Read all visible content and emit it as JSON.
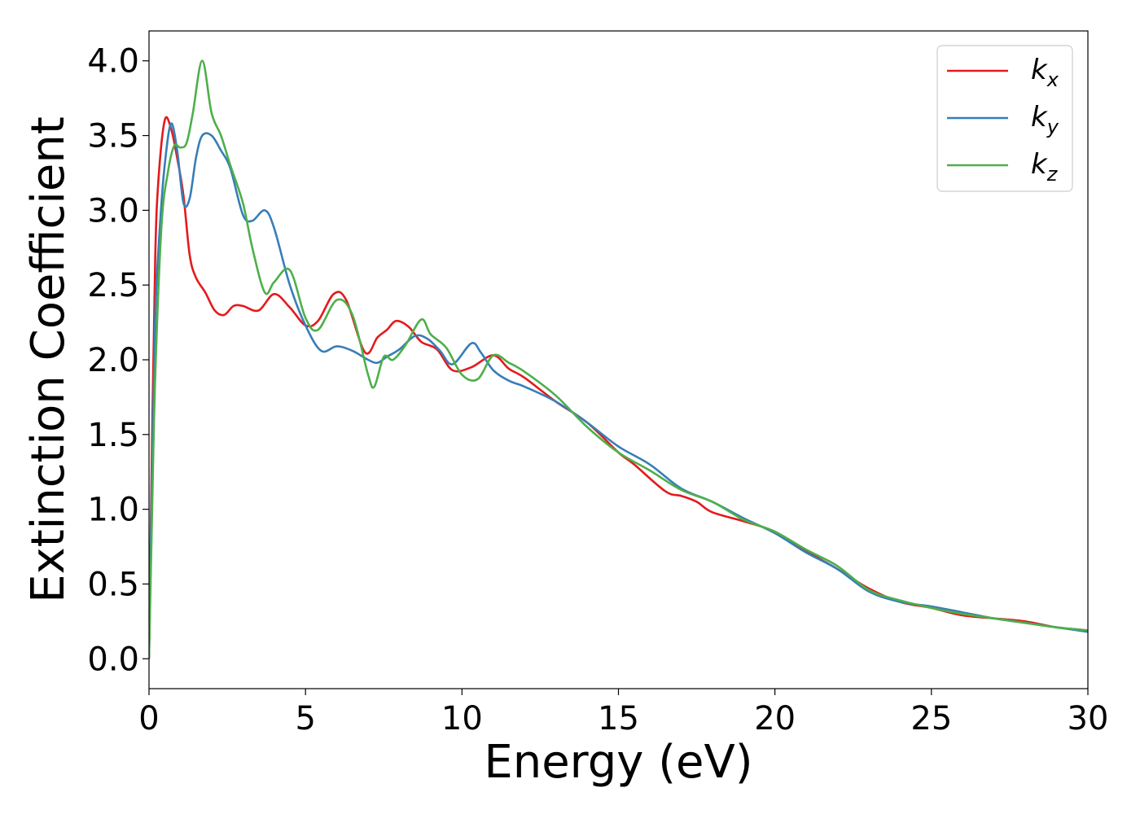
{
  "chart_data": {
    "type": "line",
    "title": "",
    "xlabel": "Energy (eV)",
    "ylabel": "Extinction Coefficient",
    "xlim": [
      0,
      30
    ],
    "ylim": [
      -0.2,
      4.2
    ],
    "xticks": [
      0,
      5,
      10,
      15,
      20,
      25,
      30
    ],
    "xtick_labels": [
      "0",
      "5",
      "10",
      "15",
      "20",
      "25",
      "30"
    ],
    "yticks": [
      0.0,
      0.5,
      1.0,
      1.5,
      2.0,
      2.5,
      3.0,
      3.5,
      4.0
    ],
    "ytick_labels": [
      "0.0",
      "0.5",
      "1.0",
      "1.5",
      "2.0",
      "2.5",
      "3.0",
      "3.5",
      "4.0"
    ],
    "grid": false,
    "legend_position": "top-right",
    "series": [
      {
        "name": "k",
        "name_sub": "x",
        "color": "#e41a1c",
        "x": [
          0,
          0.1,
          0.2,
          0.3,
          0.5,
          0.7,
          0.9,
          1.1,
          1.3,
          1.5,
          1.8,
          2.1,
          2.4,
          2.7,
          3.0,
          3.5,
          4.0,
          4.5,
          5.0,
          5.4,
          5.9,
          6.3,
          6.9,
          7.3,
          7.6,
          7.9,
          8.3,
          8.7,
          9.2,
          9.7,
          10.3,
          11.0,
          11.5,
          12.0,
          13.0,
          14.0,
          15.0,
          15.5,
          16.5,
          17.0,
          17.5,
          18.0,
          19.0,
          20.0,
          21.0,
          22.0,
          23.0,
          24.0,
          25.0,
          26.0,
          27.0,
          28.0,
          29.0,
          30.0
        ],
        "y": [
          0.0,
          1.5,
          2.7,
          3.2,
          3.6,
          3.55,
          3.35,
          3.1,
          2.7,
          2.55,
          2.45,
          2.33,
          2.3,
          2.36,
          2.36,
          2.33,
          2.44,
          2.35,
          2.23,
          2.26,
          2.44,
          2.4,
          2.05,
          2.15,
          2.2,
          2.26,
          2.22,
          2.12,
          2.07,
          1.93,
          1.95,
          2.03,
          1.94,
          1.88,
          1.72,
          1.58,
          1.38,
          1.3,
          1.12,
          1.09,
          1.05,
          0.98,
          0.92,
          0.85,
          0.72,
          0.6,
          0.47,
          0.38,
          0.34,
          0.29,
          0.27,
          0.25,
          0.21,
          0.19
        ]
      },
      {
        "name": "k",
        "name_sub": "y",
        "color": "#377eb8",
        "x": [
          0,
          0.1,
          0.2,
          0.35,
          0.5,
          0.7,
          0.9,
          1.1,
          1.3,
          1.5,
          1.7,
          2.0,
          2.3,
          2.6,
          3.0,
          3.3,
          3.7,
          4.0,
          4.5,
          5.0,
          5.5,
          6.0,
          6.5,
          7.0,
          7.3,
          7.6,
          8.0,
          8.5,
          8.9,
          9.3,
          9.7,
          10.3,
          10.6,
          11.0,
          11.5,
          12.0,
          13.0,
          14.0,
          15.0,
          16.0,
          17.0,
          18.0,
          19.0,
          20.0,
          21.0,
          22.0,
          23.0,
          24.0,
          25.0,
          26.0,
          27.0,
          28.0,
          29.0,
          30.0
        ],
        "y": [
          0.0,
          1.3,
          2.3,
          2.9,
          3.3,
          3.58,
          3.4,
          3.05,
          3.08,
          3.35,
          3.5,
          3.5,
          3.4,
          3.28,
          2.97,
          2.93,
          3.0,
          2.88,
          2.5,
          2.23,
          2.06,
          2.09,
          2.06,
          2.0,
          1.98,
          2.02,
          2.07,
          2.16,
          2.14,
          2.06,
          1.97,
          2.11,
          2.05,
          1.93,
          1.86,
          1.82,
          1.72,
          1.58,
          1.42,
          1.3,
          1.14,
          1.05,
          0.94,
          0.84,
          0.71,
          0.6,
          0.45,
          0.38,
          0.35,
          0.31,
          0.27,
          0.24,
          0.21,
          0.18
        ]
      },
      {
        "name": "k",
        "name_sub": "z",
        "color": "#4daf4a",
        "x": [
          0,
          0.1,
          0.2,
          0.4,
          0.6,
          0.8,
          1.0,
          1.2,
          1.4,
          1.7,
          2.0,
          2.3,
          2.6,
          3.0,
          3.3,
          3.7,
          4.0,
          4.5,
          5.0,
          5.4,
          6.0,
          6.5,
          7.0,
          7.2,
          7.5,
          7.8,
          8.2,
          8.7,
          9.0,
          9.5,
          10.0,
          10.5,
          11.0,
          11.5,
          12.0,
          13.0,
          14.0,
          15.0,
          16.0,
          17.0,
          18.0,
          19.0,
          20.0,
          21.0,
          22.0,
          23.0,
          24.0,
          25.0,
          26.0,
          27.0,
          28.0,
          29.0,
          30.0
        ],
        "y": [
          0.0,
          1.0,
          1.9,
          2.9,
          3.25,
          3.43,
          3.42,
          3.45,
          3.65,
          4.0,
          3.65,
          3.5,
          3.3,
          3.05,
          2.75,
          2.45,
          2.52,
          2.6,
          2.28,
          2.2,
          2.4,
          2.3,
          1.9,
          1.82,
          2.02,
          2.0,
          2.1,
          2.27,
          2.17,
          2.08,
          1.9,
          1.87,
          2.03,
          1.98,
          1.92,
          1.76,
          1.55,
          1.38,
          1.26,
          1.13,
          1.05,
          0.93,
          0.85,
          0.73,
          0.62,
          0.46,
          0.39,
          0.34,
          0.3,
          0.27,
          0.24,
          0.21,
          0.19
        ]
      }
    ]
  }
}
